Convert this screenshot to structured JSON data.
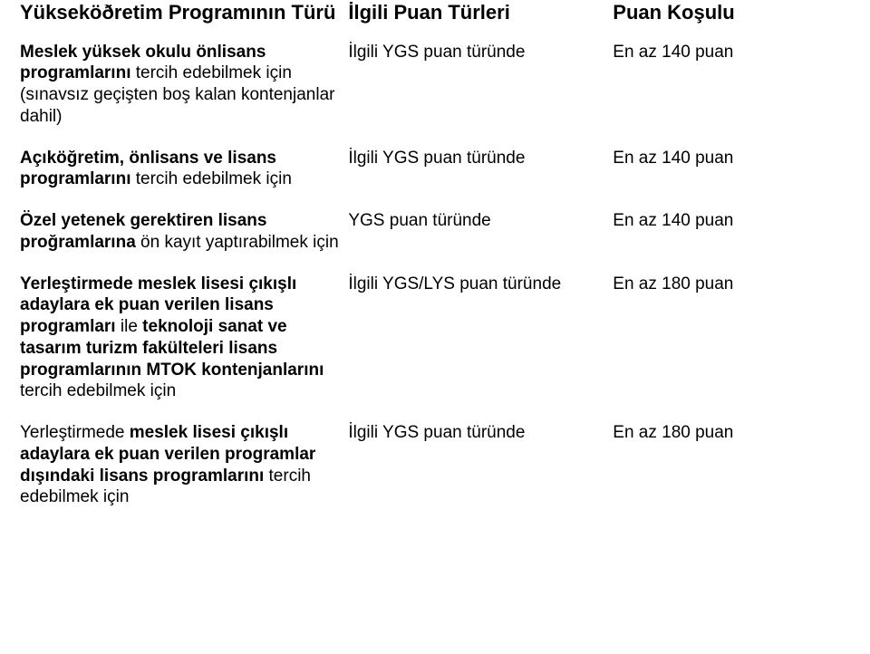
{
  "header": {
    "col0": "Yükseköðretim Programının Türü",
    "col1": "İlgili Puan Türleri",
    "col2": "Puan Koşulu"
  },
  "rows": [
    {
      "label_html": "<span class=\"b\">Meslek yüksek okulu önlisans programlarını</span> tercih edebilmek için (sınavsız geçişten boş kalan kontenjanlar dahil)",
      "c1": "İlgili YGS puan türünde",
      "c2": "En az 140 puan"
    },
    {
      "label_html": "<span class=\"b\">Açıköğretim, önlisans ve lisans programlarını</span> tercih edebilmek için",
      "c1": "İlgili YGS puan türünde",
      "c2": "En az 140 puan"
    },
    {
      "label_html": "<span class=\"b\">Özel yetenek gerektiren lisans proğramlarına</span> ön kayıt yaptırabilmek için",
      "c1": "YGS puan türünde",
      "c2": "En az 140 puan"
    },
    {
      "label_html": "<span class=\"b\">Yerleştirmede meslek lisesi çıkışlı adaylara ek puan verilen lisans programları</span> ile <span class=\"b\">teknoloji sanat ve tasarım turizm fakülteleri lisans programlarının MTOK kontenjanlarını</span> tercih edebilmek için",
      "c1": "İlgili YGS/LYS puan türünde",
      "c2": "En az 180 puan"
    },
    {
      "label_html": "Yerleştirmede <span class=\"b\">meslek lisesi çıkışlı adaylara ek puan verilen programlar dışındaki lisans programlarını</span> tercih edebilmek için",
      "c1": "İlgili YGS puan türünde",
      "c2": "En az 180 puan"
    }
  ]
}
